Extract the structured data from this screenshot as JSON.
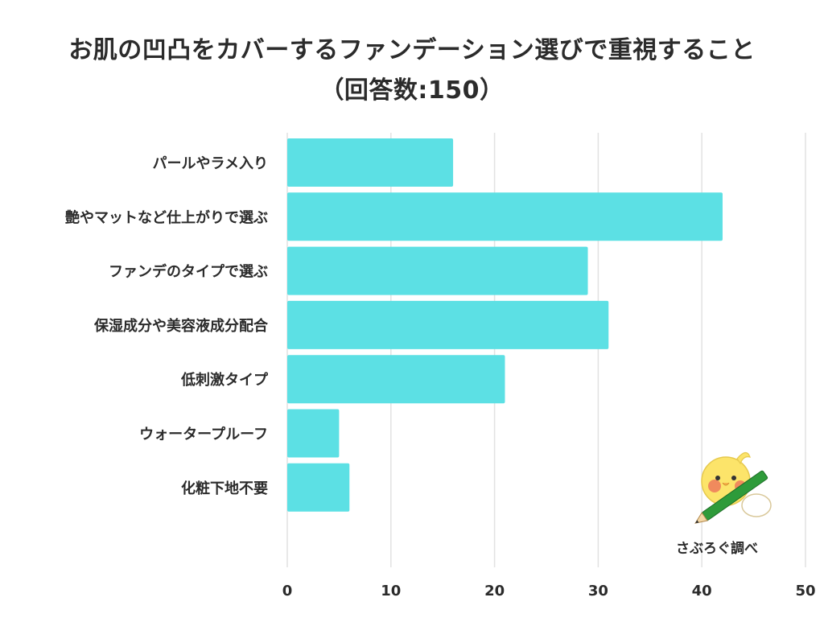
{
  "title": {
    "line1": "お肌の凹凸をカバーするファンデーション選びで重視すること",
    "line2": "（回答数:150）"
  },
  "credit": "さぶろぐ調べ",
  "colors": {
    "bar": "#5ce0e4",
    "grid": "#e2e2e2",
    "text": "#2b2b2b",
    "mascot_body": "#fce46a",
    "mascot_cheek": "#f08a5d",
    "pencil": "#2e9b3a"
  },
  "chart_data": {
    "type": "bar",
    "orientation": "horizontal",
    "categories": [
      "パールやラメ入り",
      "艶やマットなど仕上がりで選ぶ",
      "ファンデのタイプで選ぶ",
      "保湿成分や美容液成分配合",
      "低刺激タイプ",
      "ウォータープルーフ",
      "化粧下地不要"
    ],
    "values": [
      16,
      42,
      29,
      31,
      21,
      5,
      6
    ],
    "xlim": [
      0,
      50
    ],
    "xticks": [
      0,
      10,
      20,
      30,
      40,
      50
    ],
    "grid": true,
    "legend": "none"
  }
}
